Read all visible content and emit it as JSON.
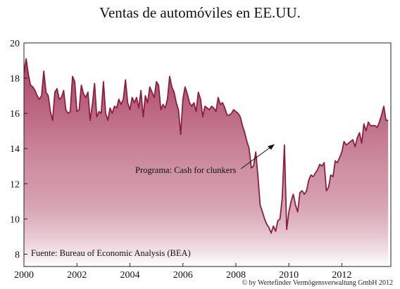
{
  "chart_data": {
    "type": "area",
    "title": "Ventas de automóviles en EE.UU.",
    "source": "Fuente: Bureau of Economic Analysis (BEA)",
    "annotation": "Programa: Cash for clunkers",
    "credit": "© by Wertefinder Vermögensverwaltung GmbH 2012",
    "xlabel": "",
    "ylabel": "",
    "xlim": [
      2000,
      2013.85
    ],
    "ylim": [
      7.3,
      20
    ],
    "x_ticks": [
      2000,
      2002,
      2004,
      2006,
      2008,
      2010,
      2012
    ],
    "y_ticks": [
      8,
      10,
      12,
      14,
      16,
      18,
      20
    ],
    "grid": false,
    "legend": "none",
    "colors": {
      "line": "#8b1f3f",
      "fill_top": "#a83a5c",
      "fill_bottom": "#ffffff",
      "frame": "#222222",
      "arrow": "#111111"
    },
    "x": [
      2000,
      2000.083,
      2000.167,
      2000.25,
      2000.333,
      2000.417,
      2000.5,
      2000.583,
      2000.667,
      2000.75,
      2000.833,
      2000.917,
      2001,
      2001.083,
      2001.167,
      2001.25,
      2001.333,
      2001.417,
      2001.5,
      2001.583,
      2001.667,
      2001.75,
      2001.833,
      2001.917,
      2002,
      2002.083,
      2002.167,
      2002.25,
      2002.333,
      2002.417,
      2002.5,
      2002.583,
      2002.667,
      2002.75,
      2002.833,
      2002.917,
      2003,
      2003.083,
      2003.167,
      2003.25,
      2003.333,
      2003.417,
      2003.5,
      2003.583,
      2003.667,
      2003.75,
      2003.833,
      2003.917,
      2004,
      2004.083,
      2004.167,
      2004.25,
      2004.333,
      2004.417,
      2004.5,
      2004.583,
      2004.667,
      2004.75,
      2004.833,
      2004.917,
      2005,
      2005.083,
      2005.167,
      2005.25,
      2005.333,
      2005.417,
      2005.5,
      2005.583,
      2005.667,
      2005.75,
      2005.833,
      2005.917,
      2006,
      2006.083,
      2006.167,
      2006.25,
      2006.333,
      2006.417,
      2006.5,
      2006.583,
      2006.667,
      2006.75,
      2006.833,
      2006.917,
      2007,
      2007.083,
      2007.167,
      2007.25,
      2007.333,
      2007.417,
      2007.5,
      2007.583,
      2007.667,
      2007.75,
      2007.833,
      2007.917,
      2008,
      2008.083,
      2008.167,
      2008.25,
      2008.333,
      2008.417,
      2008.5,
      2008.583,
      2008.667,
      2008.75,
      2008.833,
      2008.917,
      2009,
      2009.083,
      2009.167,
      2009.25,
      2009.333,
      2009.417,
      2009.5,
      2009.583,
      2009.667,
      2009.75,
      2009.833,
      2009.917,
      2010,
      2010.083,
      2010.167,
      2010.25,
      2010.333,
      2010.417,
      2010.5,
      2010.583,
      2010.667,
      2010.75,
      2010.833,
      2010.917,
      2011,
      2011.083,
      2011.167,
      2011.25,
      2011.333,
      2011.417,
      2011.5,
      2011.583,
      2011.667,
      2011.75,
      2011.833,
      2011.917,
      2012,
      2012.083,
      2012.167,
      2012.25,
      2012.333,
      2012.417,
      2012.5,
      2012.583,
      2012.667,
      2012.75,
      2012.833,
      2012.917,
      2013,
      2013.083,
      2013.167,
      2013.25,
      2013.333,
      2013.417,
      2013.5,
      2013.583,
      2013.667,
      2013.75
    ],
    "y": [
      18.3,
      19.1,
      18.2,
      17.6,
      17.5,
      17.3,
      17.0,
      16.8,
      17.0,
      18.4,
      17.2,
      17.0,
      16.1,
      15.6,
      17.2,
      17.4,
      16.8,
      16.9,
      17.3,
      16.2,
      16.0,
      16.1,
      18.1,
      17.8,
      16.1,
      16.2,
      17.6,
      17.1,
      16.9,
      17.2,
      15.6,
      16.5,
      17.7,
      15.8,
      16.1,
      16.0,
      17.8,
      16.0,
      15.6,
      16.3,
      16.0,
      16.4,
      16.3,
      16.8,
      16.5,
      16.8,
      17.9,
      16.6,
      16.2,
      16.9,
      16.6,
      16.9,
      16.3,
      17.3,
      15.8,
      17.0,
      16.6,
      17.5,
      17.2,
      16.9,
      17.8,
      17.6,
      16.2,
      16.5,
      16.3,
      16.8,
      18.1,
      17.5,
      17.2,
      16.6,
      16.2,
      14.8,
      16.8,
      17.5,
      17.1,
      16.6,
      16.4,
      16.6,
      16.1,
      17.2,
      16.8,
      15.8,
      16.4,
      16.3,
      16.2,
      16.4,
      16.3,
      16.1,
      16.9,
      16.5,
      16.6,
      16.3,
      15.9,
      15.9,
      16.0,
      16.2,
      16.1,
      16.0,
      15.8,
      15.3,
      14.9,
      14.4,
      14.0,
      12.9,
      13.0,
      13.8,
      12.4,
      10.8,
      10.4,
      10.0,
      9.7,
      9.5,
      9.2,
      9.6,
      9.3,
      9.9,
      10.0,
      11.2,
      14.2,
      9.4,
      10.4,
      11.0,
      11.4,
      10.8,
      10.4,
      11.5,
      11.6,
      11.4,
      11.6,
      12.2,
      12.5,
      12.4,
      12.6,
      12.8,
      13.1,
      13.0,
      13.2,
      11.6,
      11.8,
      12.5,
      12.4,
      13.3,
      13.2,
      13.5,
      13.8,
      14.4,
      14.2,
      14.3,
      14.4,
      14.5,
      14.1,
      14.6,
      14.9,
      14.3,
      15.4,
      15.0,
      15.5,
      15.3,
      15.3,
      15.3,
      15.2,
      15.5,
      15.9,
      16.4,
      15.6,
      15.6
    ]
  }
}
